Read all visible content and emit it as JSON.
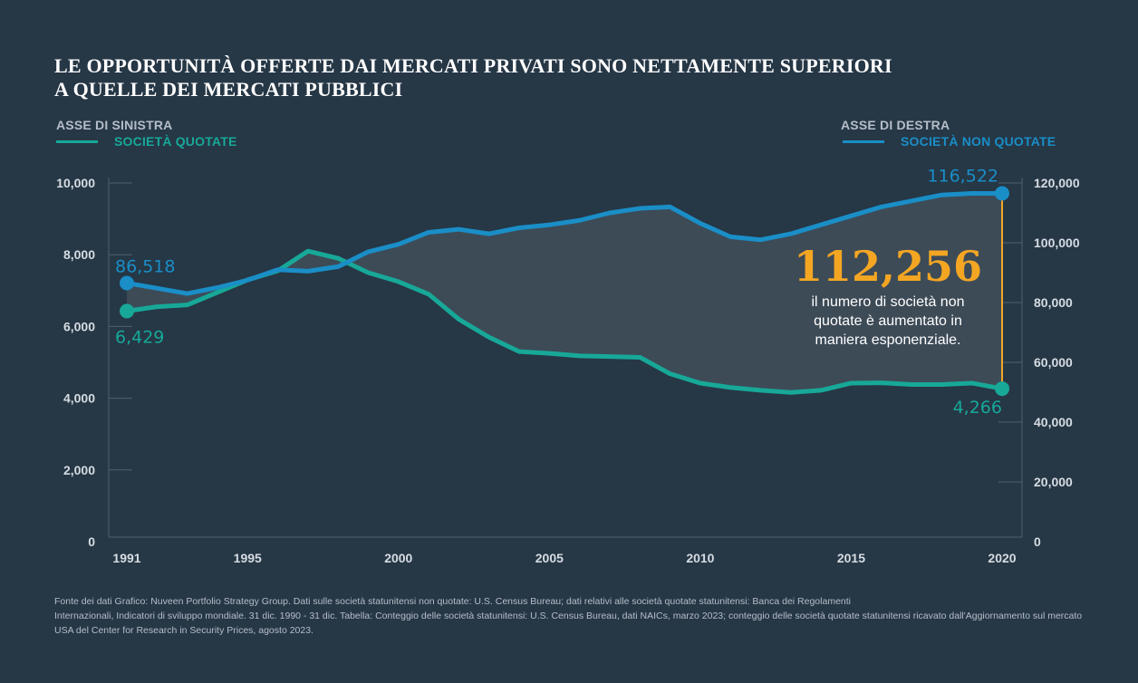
{
  "title_lines": [
    "LE OPPORTUNITÀ OFFERTE DAI MERCATI PRIVATI SONO NETTAMENTE SUPERIORI",
    "A QUELLE DEI MERCATI PUBBLICI"
  ],
  "legend": {
    "left_axis_label": "ASSE DI SINISTRA",
    "left_series_label": "SOCIETÀ QUOTATE",
    "right_axis_label": "ASSE DI DESTRA",
    "right_series_label": "SOCIETÀ NON QUOTATE"
  },
  "colors": {
    "background": "#263746",
    "listed": "#17a898",
    "private": "#1a8ec7",
    "highlight": "#f4a623",
    "fill": "#3e4c58",
    "axis": "#4f6070",
    "tick_text": "#d6dce2"
  },
  "chart_data": {
    "type": "line",
    "title": "LE OPPORTUNITÀ OFFERTE DAI MERCATI PRIVATI SONO NETTAMENTE SUPERIORI A QUELLE DEI MERCATI PUBBLICI",
    "x": [
      1991,
      1992,
      1993,
      1994,
      1995,
      1996,
      1997,
      1998,
      1999,
      2000,
      2001,
      2002,
      2003,
      2004,
      2005,
      2006,
      2007,
      2008,
      2009,
      2010,
      2011,
      2012,
      2013,
      2014,
      2015,
      2016,
      2017,
      2018,
      2019,
      2020
    ],
    "x_ticks": [
      "1991",
      "1995",
      "2000",
      "2005",
      "2010",
      "2015",
      "2020"
    ],
    "xlim": [
      1991,
      2020
    ],
    "y_left": {
      "label": "ASSE DI SINISTRA",
      "range": [
        0,
        10000
      ],
      "ticks": [
        "0",
        "2,000",
        "4,000",
        "6,000",
        "8,000",
        "10,000"
      ]
    },
    "y_right": {
      "label": "ASSE DI DESTRA",
      "range": [
        0,
        120000
      ],
      "ticks": [
        "0",
        "20,000",
        "40,000",
        "60,000",
        "80,000",
        "100,000",
        "120,000"
      ]
    },
    "series": [
      {
        "name": "SOCIETÀ QUOTATE",
        "axis": "left",
        "values": [
          6429,
          6550,
          6600,
          6950,
          7300,
          7550,
          8100,
          7900,
          7500,
          7250,
          6900,
          6200,
          5700,
          5300,
          5250,
          5180,
          5160,
          5140,
          4680,
          4420,
          4300,
          4220,
          4160,
          4220,
          4420,
          4430,
          4380,
          4380,
          4420,
          4266
        ]
      },
      {
        "name": "SOCIETÀ NON QUOTATE",
        "axis": "right",
        "values": [
          86518,
          84800,
          83000,
          85000,
          87500,
          91000,
          90500,
          92000,
          97000,
          99500,
          103500,
          104500,
          103000,
          105000,
          106000,
          107500,
          110000,
          111500,
          112000,
          106500,
          102000,
          101000,
          103000,
          106000,
          109000,
          112000,
          114000,
          116000,
          116500,
          116522
        ]
      }
    ],
    "point_labels": {
      "listed_start": "6,429",
      "listed_end": "4,266",
      "private_start": "86,518",
      "private_end": "116,522"
    },
    "annotation": {
      "value": "112,256",
      "text_lines": [
        "il numero di società non",
        "quotate è aumentato in",
        "maniera esponenziale."
      ]
    }
  },
  "footer_lines": [
    "Fonte dei dati Grafico: Nuveen Portfolio Strategy Group. Dati sulle società statunitensi non quotate: U.S. Census Bureau; dati relativi alle società quotate statunitensi: Banca dei Regolamenti",
    "Internazionali, Indicatori di sviluppo mondiale. 31 dic. 1990 - 31 dic. Tabella: Conteggio delle società statunitensi: U.S. Census Bureau, dati NAICs, marzo 2023; conteggio delle società quotate statunitensi ricavato dall'Aggiornamento sul mercato",
    "USA del Center for Research in Security Prices, agosto 2023."
  ]
}
